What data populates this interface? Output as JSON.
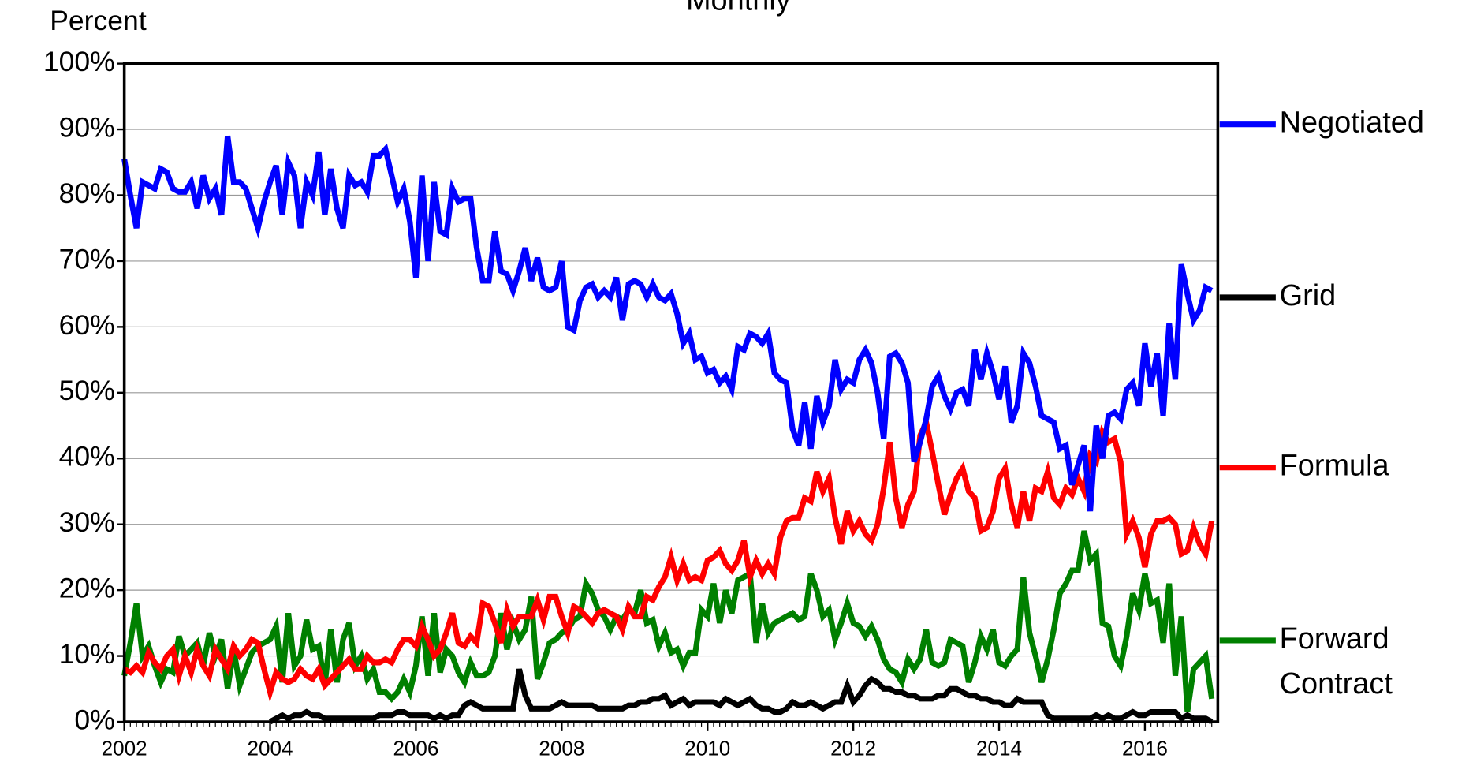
{
  "chart_data": {
    "type": "line",
    "title": "Monthly",
    "y_label": "Percent",
    "xlim": [
      2002,
      2017
    ],
    "ylim": [
      0,
      100
    ],
    "xticks": [
      2002,
      2004,
      2006,
      2008,
      2010,
      2012,
      2014,
      2016
    ],
    "yticks": [
      {
        "value": 0,
        "label": "0%"
      },
      {
        "value": 10,
        "label": "10%"
      },
      {
        "value": 20,
        "label": "20%"
      },
      {
        "value": 30,
        "label": "30%"
      },
      {
        "value": 40,
        "label": "40%"
      },
      {
        "value": 50,
        "label": "50%"
      },
      {
        "value": 60,
        "label": "60%"
      },
      {
        "value": 70,
        "label": "70%"
      },
      {
        "value": 80,
        "label": "80%"
      },
      {
        "value": 90,
        "label": "90%"
      },
      {
        "value": 100,
        "label": "100%"
      }
    ],
    "grid": true,
    "legend": "right",
    "x": [
      2002,
      2002.083,
      2002.167,
      2002.25,
      2002.333,
      2002.417,
      2002.5,
      2002.583,
      2002.667,
      2002.75,
      2002.833,
      2002.917,
      2003,
      2003.083,
      2003.167,
      2003.25,
      2003.333,
      2003.417,
      2003.5,
      2003.583,
      2003.667,
      2003.75,
      2003.833,
      2003.917,
      2004,
      2004.083,
      2004.167,
      2004.25,
      2004.333,
      2004.417,
      2004.5,
      2004.583,
      2004.667,
      2004.75,
      2004.833,
      2004.917,
      2005,
      2005.083,
      2005.167,
      2005.25,
      2005.333,
      2005.417,
      2005.5,
      2005.583,
      2005.667,
      2005.75,
      2005.833,
      2005.917,
      2006,
      2006.083,
      2006.167,
      2006.25,
      2006.333,
      2006.417,
      2006.5,
      2006.583,
      2006.667,
      2006.75,
      2006.833,
      2006.917,
      2007,
      2007.083,
      2007.167,
      2007.25,
      2007.333,
      2007.417,
      2007.5,
      2007.583,
      2007.667,
      2007.75,
      2007.833,
      2007.917,
      2008,
      2008.083,
      2008.167,
      2008.25,
      2008.333,
      2008.417,
      2008.5,
      2008.583,
      2008.667,
      2008.75,
      2008.833,
      2008.917,
      2009,
      2009.083,
      2009.167,
      2009.25,
      2009.333,
      2009.417,
      2009.5,
      2009.583,
      2009.667,
      2009.75,
      2009.833,
      2009.917,
      2010,
      2010.083,
      2010.167,
      2010.25,
      2010.333,
      2010.417,
      2010.5,
      2010.583,
      2010.667,
      2010.75,
      2010.833,
      2010.917,
      2011,
      2011.083,
      2011.167,
      2011.25,
      2011.333,
      2011.417,
      2011.5,
      2011.583,
      2011.667,
      2011.75,
      2011.833,
      2011.917,
      2012,
      2012.083,
      2012.167,
      2012.25,
      2012.333,
      2012.417,
      2012.5,
      2012.583,
      2012.667,
      2012.75,
      2012.833,
      2012.917,
      2013,
      2013.083,
      2013.167,
      2013.25,
      2013.333,
      2013.417,
      2013.5,
      2013.583,
      2013.667,
      2013.75,
      2013.833,
      2013.917,
      2014,
      2014.083,
      2014.167,
      2014.25,
      2014.333,
      2014.417,
      2014.5,
      2014.583,
      2014.667,
      2014.75,
      2014.833,
      2014.917,
      2015,
      2015.083,
      2015.167,
      2015.25,
      2015.333,
      2015.417,
      2015.5,
      2015.583,
      2015.667,
      2015.75,
      2015.833,
      2015.917,
      2016,
      2016.083,
      2016.167,
      2016.25,
      2016.333,
      2016.417,
      2016.5,
      2016.583,
      2016.667,
      2016.75,
      2016.833,
      2016.917
    ],
    "series": [
      {
        "name": "Negotiated",
        "color": "#0000ff",
        "values": [
          85.5,
          80,
          75,
          82,
          81.5,
          81,
          84,
          83.5,
          81,
          80.5,
          80.5,
          82,
          78,
          83,
          79.5,
          81,
          77,
          89,
          82,
          82,
          81,
          78,
          75,
          79,
          82,
          84.5,
          77,
          85,
          83,
          75,
          82,
          80,
          86.5,
          77,
          84,
          78,
          75,
          83,
          81.5,
          82,
          80.5,
          86,
          86,
          87,
          83,
          79,
          81,
          76,
          67.5,
          83,
          70,
          82,
          74.5,
          74,
          81,
          79,
          79.5,
          79.5,
          72,
          67,
          67,
          74.5,
          68.5,
          68,
          65.5,
          68.5,
          72,
          67,
          70.5,
          66,
          65.5,
          66,
          70,
          60,
          59.5,
          64,
          66,
          66.5,
          64.5,
          65.5,
          64.5,
          67.5,
          61,
          66.5,
          67,
          66.5,
          64.5,
          66.5,
          64.5,
          64,
          65,
          62,
          57.5,
          59,
          55,
          55.5,
          53,
          53.5,
          51.5,
          52.5,
          50.5,
          57,
          56.5,
          59,
          58.5,
          57.5,
          59,
          53,
          52,
          51.5,
          44.5,
          42,
          48.5,
          41.5,
          49.5,
          45.5,
          48,
          55,
          50.5,
          52,
          51.5,
          55,
          56.5,
          54.5,
          50,
          43,
          55.5,
          56,
          54.5,
          51.5,
          39.5,
          42.5,
          46,
          51,
          52.5,
          49.5,
          47.5,
          50,
          50.5,
          48,
          56.5,
          52,
          56,
          53,
          49,
          54,
          45.5,
          48,
          56,
          54.5,
          51,
          46.5,
          46,
          45.5,
          41.5,
          42,
          36,
          39,
          42,
          32,
          45,
          40,
          46.5,
          47,
          46,
          50.5,
          51.5,
          48,
          57.5,
          51,
          56,
          46.5,
          60.5,
          52,
          69.5,
          65,
          61,
          62.5,
          66,
          65.5
        ]
      },
      {
        "name": "Grid",
        "color": "#000000",
        "values": [
          null,
          null,
          null,
          null,
          null,
          null,
          null,
          null,
          null,
          null,
          null,
          null,
          null,
          null,
          null,
          null,
          null,
          null,
          null,
          null,
          null,
          null,
          null,
          null,
          0,
          0.5,
          1,
          0.5,
          1,
          1,
          1.5,
          1,
          1,
          0.5,
          0.5,
          0.5,
          0.5,
          0.5,
          0.5,
          0.5,
          0.5,
          0.5,
          1,
          1,
          1,
          1.5,
          1.5,
          1,
          1,
          1,
          1,
          0.5,
          1,
          0.5,
          1,
          1,
          2.5,
          3,
          2.5,
          2,
          2,
          2,
          2,
          2,
          2,
          8,
          4,
          2,
          2,
          2,
          2,
          2.5,
          3,
          2.5,
          2.5,
          2.5,
          2.5,
          2.5,
          2,
          2,
          2,
          2,
          2,
          2.5,
          2.5,
          3,
          3,
          3.5,
          3.5,
          4,
          2.5,
          3,
          3.5,
          2.5,
          3,
          3,
          3,
          3,
          2.5,
          3.5,
          3,
          2.5,
          3,
          3.5,
          2.5,
          2,
          2,
          1.5,
          1.5,
          2,
          3,
          2.5,
          2.5,
          3,
          2.5,
          2,
          2.5,
          3,
          3,
          5.5,
          3,
          4,
          5.5,
          6.5,
          6,
          5,
          5,
          4.5,
          4.5,
          4,
          4,
          3.5,
          3.5,
          3.5,
          4,
          4,
          5,
          5,
          4.5,
          4,
          4,
          3.5,
          3.5,
          3,
          3,
          2.5,
          2.5,
          3.5,
          3,
          3,
          3,
          3,
          1,
          0.5,
          0.5,
          0.5,
          0.5,
          0.5,
          0.5,
          0.5,
          1,
          0.5,
          1,
          0.5,
          0.5,
          1,
          1.5,
          1,
          1,
          1.5,
          1.5,
          1.5,
          1.5,
          1.5,
          0.5,
          1,
          0.5,
          0.5,
          0.5,
          0
        ]
      },
      {
        "name": "Formula",
        "color": "#ff0000",
        "values": [
          8,
          7.5,
          8.5,
          7.5,
          10.5,
          9,
          8,
          10,
          11,
          7,
          10,
          7.5,
          11,
          8.5,
          7,
          11,
          9.5,
          8,
          11.5,
          10,
          11,
          12.5,
          12,
          8,
          4.5,
          7.5,
          6.5,
          6,
          6.5,
          8,
          7,
          6.5,
          8,
          5.5,
          6.5,
          7.5,
          8.5,
          9.5,
          8,
          8,
          10,
          9,
          9,
          9.5,
          9,
          11,
          12.5,
          12.5,
          11.5,
          14.5,
          12.5,
          10,
          11,
          13.5,
          16.5,
          12,
          11.5,
          13,
          12,
          18,
          17.5,
          15,
          12,
          17,
          14.5,
          16,
          16,
          16,
          18.5,
          15.5,
          19,
          19,
          16,
          13.5,
          17.5,
          17,
          16,
          15,
          16.5,
          17,
          16.5,
          16,
          14,
          17.5,
          16,
          16,
          19,
          18.5,
          20.5,
          22,
          25,
          21.5,
          24,
          21.5,
          22,
          21.5,
          24.5,
          25,
          26,
          24,
          23,
          24.5,
          27.5,
          22,
          24.5,
          22.5,
          24,
          22.5,
          28,
          30.5,
          31,
          31,
          34,
          33.5,
          38,
          35,
          37,
          31,
          27,
          32,
          29,
          30.5,
          28.5,
          27.5,
          30,
          35.5,
          42.5,
          34,
          29.5,
          33,
          35,
          43.5,
          45.5,
          41,
          36,
          31.5,
          34.5,
          37,
          38.5,
          35,
          34,
          29,
          29.5,
          32,
          37,
          38.5,
          33,
          29.5,
          35,
          30.5,
          35.5,
          35,
          38,
          34,
          33,
          35.5,
          34.5,
          37,
          35,
          40.5,
          39.5,
          44,
          42.5,
          43,
          39.5,
          28.5,
          30.5,
          28,
          23.5,
          28.5,
          30.5,
          30.5,
          31,
          30,
          25.5,
          26,
          29.5,
          27,
          25.5,
          30.5
        ]
      },
      {
        "name": "Forward Contract",
        "color": "#008000",
        "values": [
          7,
          12,
          18,
          10,
          11.5,
          8.5,
          6,
          8,
          7.5,
          13,
          10,
          11,
          12,
          8.5,
          13.5,
          10,
          12.5,
          5,
          11,
          5.5,
          8,
          10.5,
          11.5,
          12,
          12.5,
          14.5,
          6,
          16.5,
          8.5,
          10,
          15.5,
          11,
          11.5,
          5.5,
          14,
          6,
          12.5,
          15,
          8.5,
          10,
          6.5,
          8,
          4.5,
          4.5,
          3.5,
          4.5,
          6.5,
          4.5,
          8.5,
          16,
          7,
          16.5,
          7.5,
          11,
          10,
          7.5,
          6,
          9,
          7,
          7,
          7.5,
          10,
          16.5,
          11,
          15,
          12.5,
          14,
          19,
          6.5,
          9,
          12,
          12.5,
          13.5,
          14,
          15.5,
          16,
          21,
          19.5,
          17,
          16,
          14,
          16,
          15.5,
          17,
          16.5,
          20,
          15,
          15.5,
          11.5,
          13.5,
          10.5,
          11,
          8.5,
          10.5,
          10.5,
          17,
          16,
          21,
          15,
          20,
          16.5,
          21.5,
          22,
          22.5,
          12,
          18,
          13.5,
          15,
          15.5,
          16,
          16.5,
          15.5,
          16,
          22.5,
          20,
          16,
          17,
          12.5,
          15,
          18,
          15,
          14.5,
          13,
          14.5,
          12.5,
          9.5,
          8,
          7.5,
          6,
          9.5,
          8,
          9.5,
          14,
          9,
          8.5,
          9,
          12.5,
          12,
          11.5,
          6,
          9,
          13,
          11,
          14,
          9,
          8.5,
          10,
          11,
          22,
          13.5,
          10,
          6,
          9.5,
          14,
          19.5,
          21,
          23,
          23,
          29,
          24.5,
          25.5,
          15,
          14.5,
          10,
          8.5,
          13,
          19.5,
          17,
          22.5,
          18,
          18.5,
          12,
          21,
          7,
          16,
          1.5,
          8,
          9,
          10,
          3.5
        ]
      }
    ]
  }
}
